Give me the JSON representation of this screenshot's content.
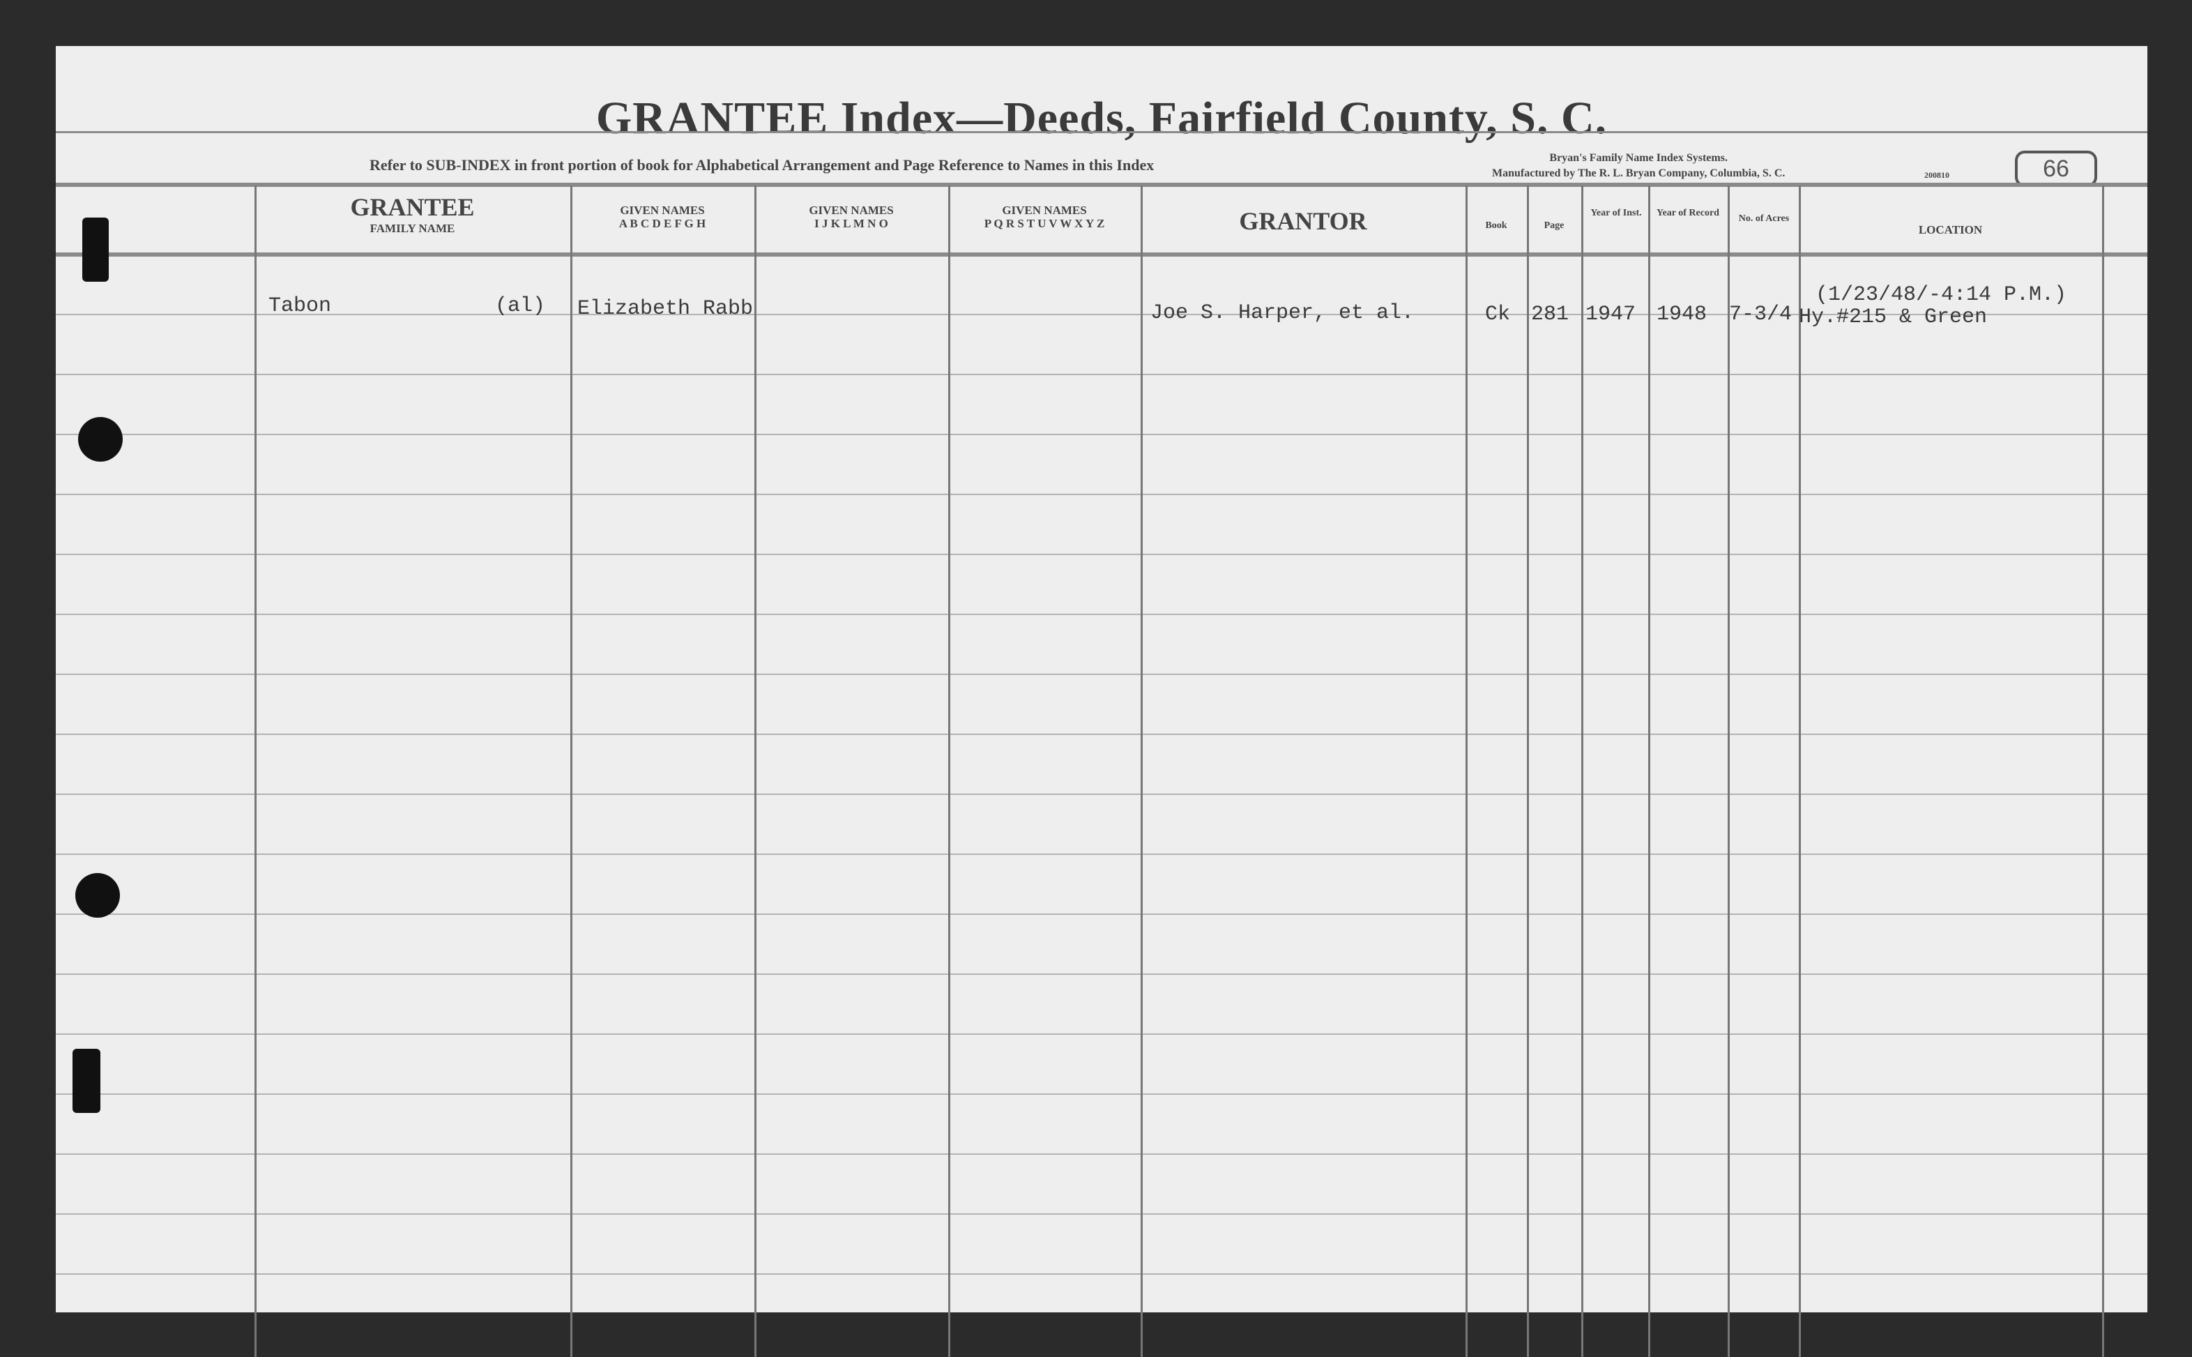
{
  "header": {
    "title": "GRANTEE Index—Deeds, Fairfield County, S. C.",
    "refer_note": "Refer to SUB-INDEX in front portion of book for Alphabetical Arrangement and Page Reference to Names in this Index",
    "maker_line1": "Bryan's Family Name Index Systems.",
    "maker_line2": "Manufactured by The R. L. Bryan Company, Columbia, S. C.",
    "form_number": "200810",
    "page_number": "66"
  },
  "columns": {
    "grantee": "GRANTEE",
    "grantee_sub": "FAMILY NAME",
    "given1": "GIVEN NAMES",
    "given1_sub": "A B C D E F G H",
    "given2": "GIVEN NAMES",
    "given2_sub": "I J K L M N O",
    "given3": "GIVEN NAMES",
    "given3_sub": "P Q R S T U V W X Y Z",
    "grantor": "GRANTOR",
    "book": "Book",
    "page": "Page",
    "year_inst": "Year of Inst.",
    "year_record": "Year of Record",
    "acres": "No. of Acres",
    "location": "LOCATION"
  },
  "rows": [
    {
      "family_name": "Tabon",
      "note": "(al)",
      "given_name": "Elizabeth Rabb",
      "grantor": "Joe S. Harper, et al.",
      "book": "Ck",
      "page": "281",
      "year_inst": "1947",
      "year_record": "1948",
      "acres": "7-3/4",
      "location_line1": "(1/23/48/-4:14 P.M.)",
      "location_line2": "Hy.#215 & Green"
    }
  ]
}
